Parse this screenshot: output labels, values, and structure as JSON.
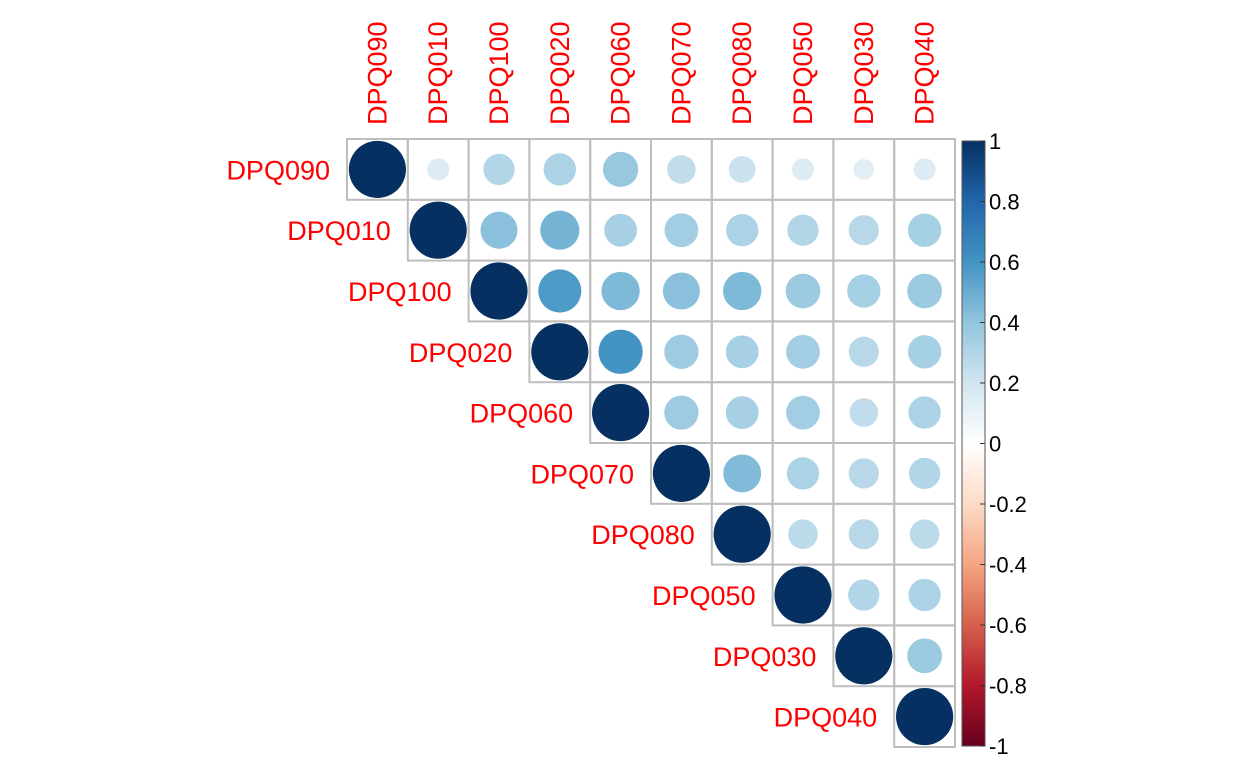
{
  "chart_data": {
    "type": "heatmap",
    "subtype": "correlation-circle-upper-triangle",
    "variables": [
      "DPQ090",
      "DPQ010",
      "DPQ100",
      "DPQ020",
      "DPQ060",
      "DPQ070",
      "DPQ080",
      "DPQ050",
      "DPQ030",
      "DPQ040"
    ],
    "matrix": [
      [
        1.0,
        0.15,
        0.3,
        0.32,
        0.38,
        0.25,
        0.22,
        0.15,
        0.13,
        0.15
      ],
      [
        0.15,
        1.0,
        0.42,
        0.47,
        0.33,
        0.35,
        0.32,
        0.3,
        0.28,
        0.34
      ],
      [
        0.3,
        0.42,
        1.0,
        0.57,
        0.45,
        0.42,
        0.45,
        0.37,
        0.34,
        0.37
      ],
      [
        0.32,
        0.47,
        0.57,
        1.0,
        0.6,
        0.36,
        0.33,
        0.35,
        0.28,
        0.34
      ],
      [
        0.38,
        0.33,
        0.45,
        0.6,
        1.0,
        0.36,
        0.33,
        0.35,
        0.25,
        0.32
      ],
      [
        0.25,
        0.35,
        0.42,
        0.36,
        0.36,
        1.0,
        0.44,
        0.32,
        0.28,
        0.3
      ],
      [
        0.22,
        0.32,
        0.45,
        0.33,
        0.33,
        0.44,
        1.0,
        0.27,
        0.28,
        0.27
      ],
      [
        0.15,
        0.3,
        0.37,
        0.35,
        0.35,
        0.32,
        0.27,
        1.0,
        0.3,
        0.32
      ],
      [
        0.13,
        0.28,
        0.34,
        0.28,
        0.25,
        0.28,
        0.28,
        0.3,
        1.0,
        0.37
      ],
      [
        0.15,
        0.34,
        0.37,
        0.34,
        0.32,
        0.3,
        0.27,
        0.32,
        0.37,
        1.0
      ]
    ],
    "legend": {
      "position": "right",
      "range": [
        -1,
        1
      ],
      "ticks": [
        "1",
        "0.8",
        "0.6",
        "0.4",
        "0.2",
        "0",
        "-0.2",
        "-0.4",
        "-0.6",
        "-0.8",
        "-1"
      ],
      "color_stops": [
        "#67001F",
        "#B2182B",
        "#D6604D",
        "#F4A582",
        "#FDDBC7",
        "#FFFFFF",
        "#D1E5F0",
        "#92C5DE",
        "#4393C3",
        "#2166AC",
        "#053061"
      ]
    },
    "label_color": "#FF0000",
    "grid_color": "#BEBEBE",
    "grid": true
  }
}
